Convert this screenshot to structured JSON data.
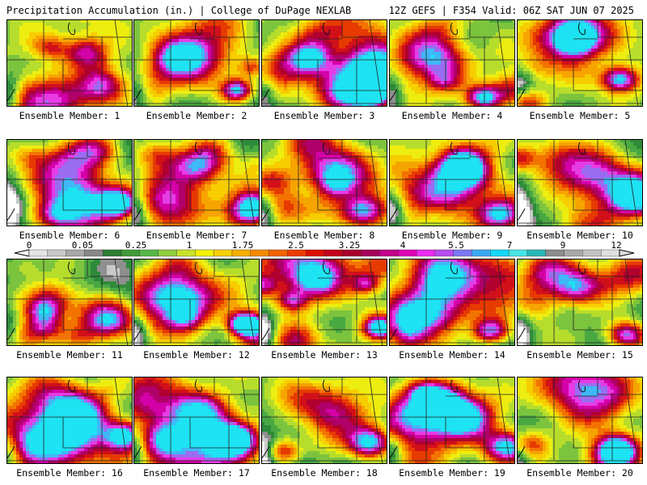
{
  "header": {
    "title": "Precipitation Accumulation (in.) | College of DuPage NEXLAB",
    "run": "12Z GEFS | F354 Valid: 06Z SAT JUN 07 2025"
  },
  "legend": {
    "labels": [
      "0",
      "0.05",
      "0.25",
      "1",
      "1.75",
      "2.5",
      "3.25",
      "4",
      "5.5",
      "7",
      "9",
      "12"
    ],
    "colors": [
      "#e4e4e4",
      "#c8c8c8",
      "#a8a8a8",
      "#888888",
      "#2e7d32",
      "#3f9b38",
      "#56b847",
      "#8fce3e",
      "#c9e22c",
      "#f2f200",
      "#f7d000",
      "#f6ae00",
      "#f58a00",
      "#f26500",
      "#ee3c00",
      "#dd1000",
      "#c4001c",
      "#a9002c",
      "#a6005a",
      "#c1008a",
      "#de00b6",
      "#ec2bf0",
      "#b84cf0",
      "#7a78f2",
      "#3ba9f5",
      "#16d8f8",
      "#45e6e6",
      "#2bb8b8",
      "#8c8c8c",
      "#a8a8a8",
      "#c4c4c4",
      "#e0e0e0"
    ]
  },
  "members": [
    {
      "label": "Ensemble Member: 1"
    },
    {
      "label": "Ensemble Member: 2"
    },
    {
      "label": "Ensemble Member: 3"
    },
    {
      "label": "Ensemble Member: 4"
    },
    {
      "label": "Ensemble Member: 5"
    },
    {
      "label": "Ensemble Member: 6"
    },
    {
      "label": "Ensemble Member: 7"
    },
    {
      "label": "Ensemble Member: 8"
    },
    {
      "label": "Ensemble Member: 9"
    },
    {
      "label": "Ensemble Member: 10"
    },
    {
      "label": "Ensemble Member: 11"
    },
    {
      "label": "Ensemble Member: 12"
    },
    {
      "label": "Ensemble Member: 13"
    },
    {
      "label": "Ensemble Member: 14"
    },
    {
      "label": "Ensemble Member: 15"
    },
    {
      "label": "Ensemble Member: 16"
    },
    {
      "label": "Ensemble Member: 17"
    },
    {
      "label": "Ensemble Member: 18"
    },
    {
      "label": "Ensemble Member: 19"
    },
    {
      "label": "Ensemble Member: 20"
    }
  ]
}
